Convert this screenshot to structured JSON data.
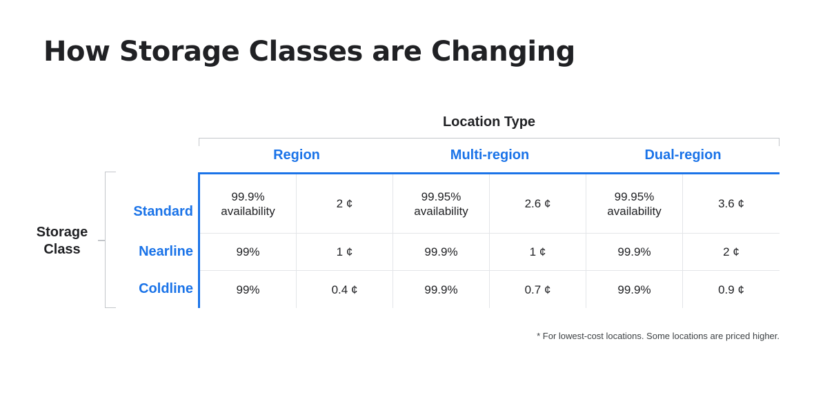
{
  "title": "How Storage Classes are Changing",
  "location_type_label": "Location Type",
  "storage_class_label": "Storage Class",
  "location_groups": [
    "Region",
    "Multi-region",
    "Dual-region"
  ],
  "rows": [
    {
      "label": "Standard",
      "cells": [
        "99.9% availability",
        "2 ¢",
        "99.95% availability",
        "2.6 ¢",
        "99.95% availability",
        "3.6 ¢"
      ]
    },
    {
      "label": "Nearline",
      "cells": [
        "99%",
        "1 ¢",
        "99.9%",
        "1 ¢",
        "99.9%",
        "2 ¢"
      ]
    },
    {
      "label": "Coldline",
      "cells": [
        "99%",
        "0.4 ¢",
        "99.9%",
        "0.7 ¢",
        "99.9%",
        "0.9 ¢"
      ]
    }
  ],
  "footnote": "* For lowest-cost locations. Some locations are priced higher.",
  "colors": {
    "accent": "#1a73e8",
    "text": "#202124",
    "rule": "#c3c6ca"
  }
}
